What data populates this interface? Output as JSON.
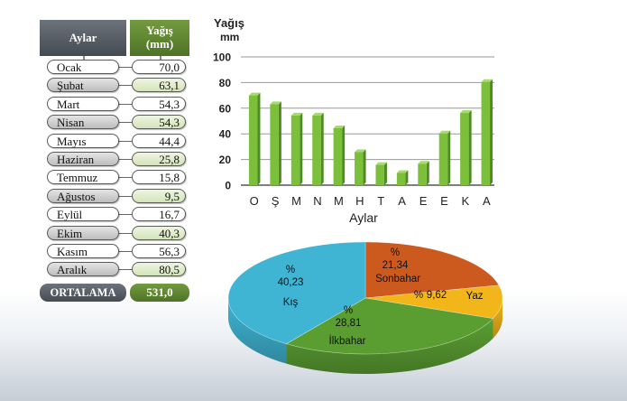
{
  "table": {
    "month_header": "Aylar",
    "rain_header_line1": "Yağış",
    "rain_header_line2": "(mm)",
    "rows": [
      {
        "month": "Ocak",
        "rain": "70,0"
      },
      {
        "month": "Şubat",
        "rain": "63,1"
      },
      {
        "month": "Mart",
        "rain": "54,3"
      },
      {
        "month": "Nisan",
        "rain": "54,3"
      },
      {
        "month": "Mayıs",
        "rain": "44,4"
      },
      {
        "month": "Haziran",
        "rain": "25,8"
      },
      {
        "month": "Temmuz",
        "rain": "15,8"
      },
      {
        "month": "Ağustos",
        "rain": "9,5"
      },
      {
        "month": "Eylül",
        "rain": "16,7"
      },
      {
        "month": "Ekim",
        "rain": "40,3"
      },
      {
        "month": "Kasım",
        "rain": "56,3"
      },
      {
        "month": "Aralık",
        "rain": "80,5"
      }
    ],
    "average_label": "ORTALAMA",
    "average_value": "531,0"
  },
  "chart_data": [
    {
      "type": "bar",
      "ylabel_line1": "Yağış",
      "ylabel_line2": "mm",
      "xlabel": "Aylar",
      "categories": [
        "O",
        "Ş",
        "M",
        "N",
        "M",
        "H",
        "T",
        "A",
        "E",
        "E",
        "K",
        "A"
      ],
      "values": [
        70.0,
        63.1,
        54.3,
        54.3,
        44.4,
        25.8,
        15.8,
        9.5,
        16.7,
        40.3,
        56.3,
        80.5
      ],
      "yticks": [
        "0",
        "20",
        "40",
        "60",
        "80",
        "100"
      ],
      "ylim": [
        0,
        100
      ],
      "grid": true,
      "bar_color": "#7cbf3a"
    },
    {
      "type": "pie",
      "slices": [
        {
          "name": "Sonbahar",
          "percent_sign": "%",
          "value_label": "21,34",
          "value": 21.34,
          "color": "#cc5a1e"
        },
        {
          "name": "Yaz",
          "percent_sign": "%",
          "value_label": "9,62",
          "value": 9.62,
          "color": "#f2b61a"
        },
        {
          "name": "İlkbahar",
          "percent_sign": "%",
          "value_label": "28,81",
          "value": 28.81,
          "color": "#5a9e32"
        },
        {
          "name": "Kış",
          "percent_sign": "%",
          "value_label": "40,23",
          "value": 40.23,
          "color": "#3fb4d3"
        }
      ]
    }
  ]
}
